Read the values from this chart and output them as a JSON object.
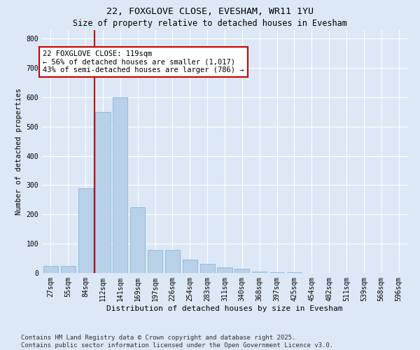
{
  "title1": "22, FOXGLOVE CLOSE, EVESHAM, WR11 1YU",
  "title2": "Size of property relative to detached houses in Evesham",
  "xlabel": "Distribution of detached houses by size in Evesham",
  "ylabel": "Number of detached properties",
  "categories": [
    "27sqm",
    "55sqm",
    "84sqm",
    "112sqm",
    "141sqm",
    "169sqm",
    "197sqm",
    "226sqm",
    "254sqm",
    "283sqm",
    "311sqm",
    "340sqm",
    "368sqm",
    "397sqm",
    "425sqm",
    "454sqm",
    "482sqm",
    "511sqm",
    "539sqm",
    "568sqm",
    "596sqm"
  ],
  "values": [
    25,
    25,
    290,
    550,
    600,
    225,
    80,
    80,
    45,
    30,
    20,
    15,
    5,
    3,
    2,
    1,
    1,
    0,
    0,
    0,
    0
  ],
  "bar_color": "#b8d0e8",
  "bar_edge_color": "#7aafd4",
  "vline_color": "#cc0000",
  "annotation_text": "22 FOXGLOVE CLOSE: 119sqm\n← 56% of detached houses are smaller (1,017)\n43% of semi-detached houses are larger (786) →",
  "annotation_box_color": "#ffffff",
  "annotation_box_edge": "#cc0000",
  "ylim": [
    0,
    830
  ],
  "yticks": [
    0,
    100,
    200,
    300,
    400,
    500,
    600,
    700,
    800
  ],
  "bg_color": "#dce8f5",
  "plot_bg": "#dce8f5",
  "grid_color": "#ffffff",
  "footer_text": "Contains HM Land Registry data © Crown copyright and database right 2025.\nContains public sector information licensed under the Open Government Licence v3.0.",
  "title1_fontsize": 9.5,
  "title2_fontsize": 8.5,
  "xlabel_fontsize": 8,
  "ylabel_fontsize": 7.5,
  "tick_fontsize": 7,
  "annotation_fontsize": 7.5,
  "footer_fontsize": 6.5
}
